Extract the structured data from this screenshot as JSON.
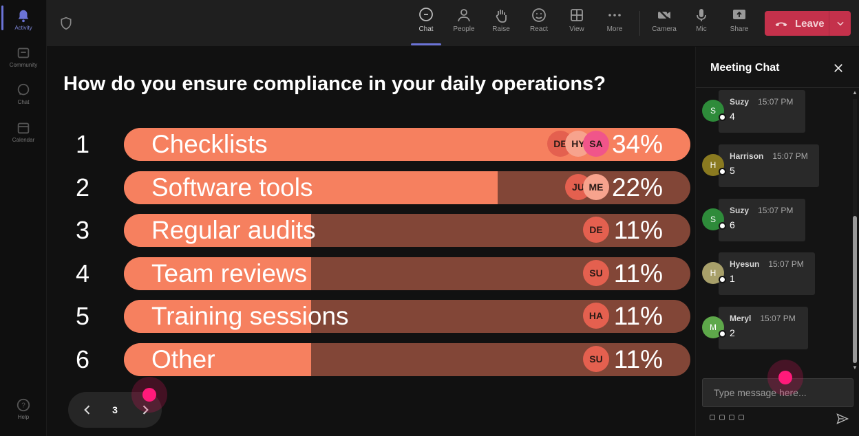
{
  "rail": {
    "items": [
      {
        "label": "Activity",
        "icon": "bell-icon",
        "active": true
      },
      {
        "label": "Community",
        "icon": "community-icon"
      },
      {
        "label": "Chat",
        "icon": "chat-icon"
      },
      {
        "label": "Calendar",
        "icon": "calendar-icon"
      }
    ],
    "help_label": "Help"
  },
  "toolbar": {
    "buttons": [
      {
        "label": "Chat",
        "icon": "chat-icon",
        "active": true
      },
      {
        "label": "People",
        "icon": "people-icon"
      },
      {
        "label": "Raise",
        "icon": "hand-icon"
      },
      {
        "label": "React",
        "icon": "smiley-icon"
      },
      {
        "label": "View",
        "icon": "grid-icon"
      },
      {
        "label": "More",
        "icon": "more-icon"
      },
      {
        "label": "Camera",
        "icon": "camera-off-icon"
      },
      {
        "label": "Mic",
        "icon": "mic-icon"
      },
      {
        "label": "Share",
        "icon": "share-icon"
      }
    ],
    "leave_label": "Leave"
  },
  "poll": {
    "question": "How do you ensure compliance in your daily operations?",
    "options": [
      {
        "num": "1",
        "label": "Checklists",
        "percent_text": "34%",
        "fill_fraction": 1.0,
        "voters": [
          "DE",
          "HY",
          "SA"
        ]
      },
      {
        "num": "2",
        "label": "Software tools",
        "percent_text": "22%",
        "fill_fraction": 0.66,
        "voters": [
          "JU",
          "ME"
        ]
      },
      {
        "num": "3",
        "label": "Regular audits",
        "percent_text": "11%",
        "fill_fraction": 0.33,
        "voters": [
          "DE"
        ]
      },
      {
        "num": "4",
        "label": "Team reviews",
        "percent_text": "11%",
        "fill_fraction": 0.33,
        "voters": [
          "SU"
        ]
      },
      {
        "num": "5",
        "label": "Training sessions",
        "percent_text": "11%",
        "fill_fraction": 0.33,
        "voters": [
          "HA"
        ]
      },
      {
        "num": "6",
        "label": "Other",
        "percent_text": "11%",
        "fill_fraction": 0.33,
        "voters": [
          "SU"
        ]
      }
    ],
    "pager": {
      "page": "3"
    }
  },
  "chat": {
    "title": "Meeting Chat",
    "messages": [
      {
        "initial": "S",
        "name": "Suzy",
        "time": "15:07 PM",
        "text": "4",
        "color": "#2e8b3a"
      },
      {
        "initial": "H",
        "name": "Harrison",
        "time": "15:07 PM",
        "text": "5",
        "color": "#8a7a20"
      },
      {
        "initial": "S",
        "name": "Suzy",
        "time": "15:07 PM",
        "text": "6",
        "color": "#2e8b3a"
      },
      {
        "initial": "H",
        "name": "Hyesun",
        "time": "15:07 PM",
        "text": "1",
        "color": "#a8a06a"
      },
      {
        "initial": "M",
        "name": "Meryl",
        "time": "15:07 PM",
        "text": "2",
        "color": "#5ea84a"
      }
    ],
    "input_placeholder": "Type message here..."
  },
  "colors": {
    "bar_fill": "#f6805f",
    "bar_track": "#824637",
    "leave": "#c4314b",
    "accent": "#6b73d6"
  }
}
